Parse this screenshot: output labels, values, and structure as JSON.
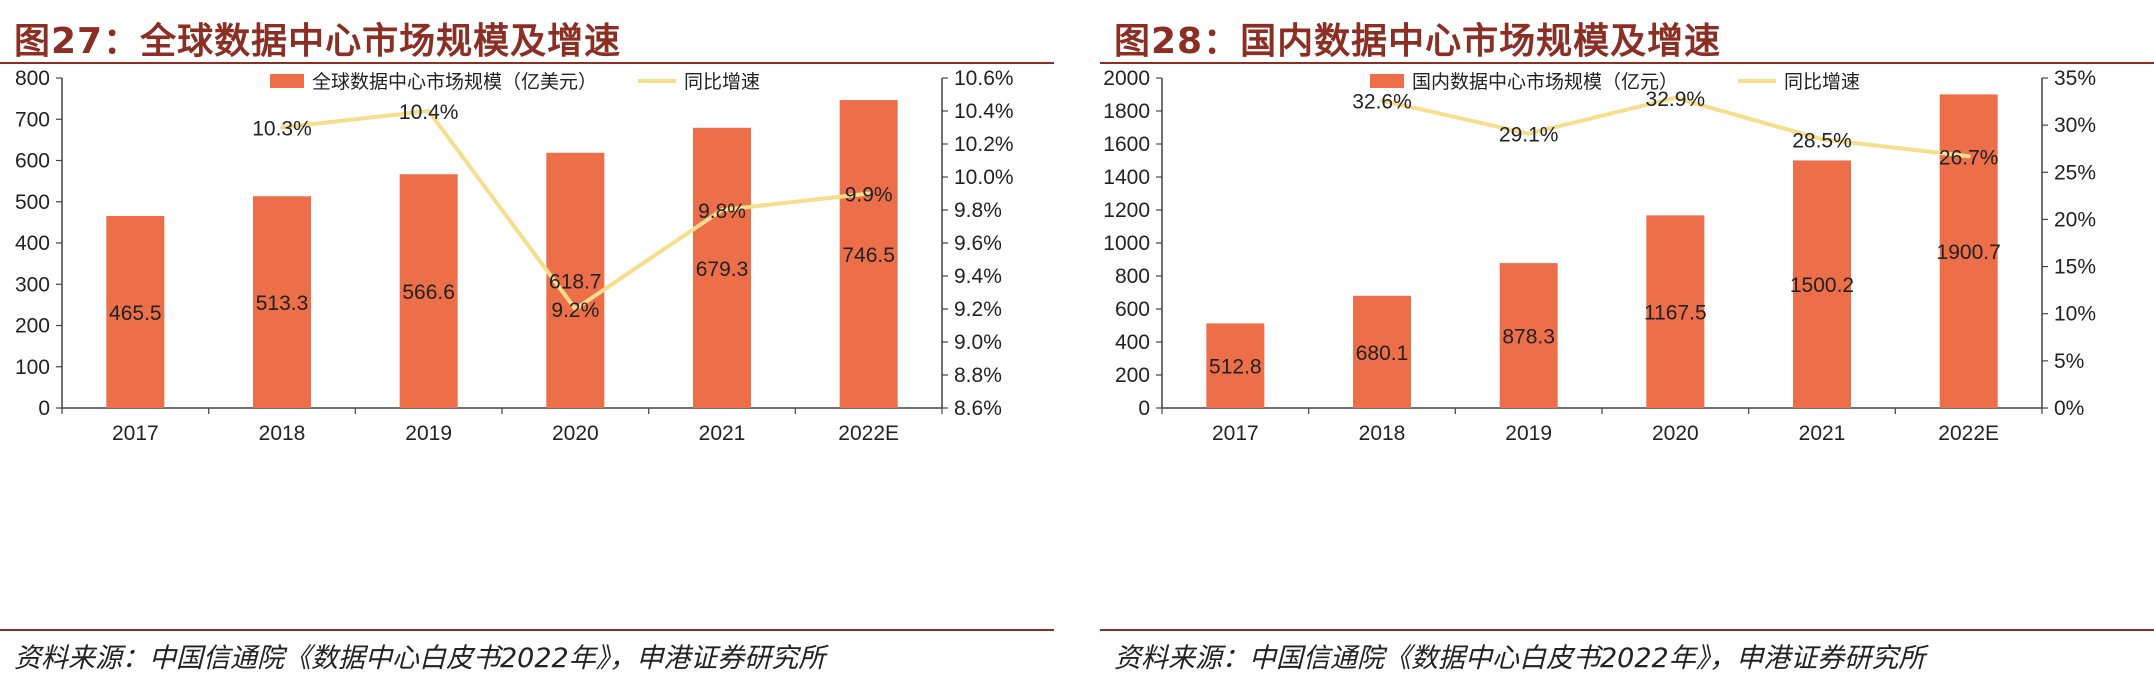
{
  "colors": {
    "bar": "#ec6f49",
    "line": "#f6de8d",
    "accent": "#8b2e23"
  },
  "charts": [
    {
      "title": "图27：全球数据中心市场规模及增速",
      "source": "资料来源：中国信通院《数据中心白皮书2022年》，申港证券研究所",
      "chart_data": {
        "type": "bar",
        "categories": [
          "2017",
          "2018",
          "2019",
          "2020",
          "2021",
          "2022E"
        ],
        "series": [
          {
            "name": "全球数据中心市场规模（亿美元）",
            "type": "bar",
            "axis": "left",
            "values": [
              465.5,
              513.3,
              566.6,
              618.7,
              679.3,
              746.5
            ],
            "labels": [
              "465.5",
              "513.3",
              "566.6",
              "618.7",
              "679.3",
              "746.5"
            ]
          },
          {
            "name": "同比增速",
            "type": "line",
            "axis": "right",
            "values": [
              null,
              10.3,
              10.4,
              9.2,
              9.8,
              9.9
            ],
            "labels": [
              "",
              "10.3%",
              "10.4%",
              "9.2%",
              "9.8%",
              "9.9%"
            ]
          }
        ],
        "y_left": {
          "min": 0,
          "max": 800,
          "ticks": [
            "0",
            "100",
            "200",
            "300",
            "400",
            "500",
            "600",
            "700",
            "800"
          ]
        },
        "y_right": {
          "min": 8.6,
          "max": 10.6,
          "ticks": [
            "8.6%",
            "8.8%",
            "9.0%",
            "9.2%",
            "9.4%",
            "9.6%",
            "9.8%",
            "10.0%",
            "10.2%",
            "10.4%",
            "10.6%"
          ]
        },
        "legend": "top-center",
        "grid": false
      }
    },
    {
      "title": "图28：国内数据中心市场规模及增速",
      "source": "资料来源：中国信通院《数据中心白皮书2022年》，申港证券研究所",
      "chart_data": {
        "type": "bar",
        "categories": [
          "2017",
          "2018",
          "2019",
          "2020",
          "2021",
          "2022E"
        ],
        "series": [
          {
            "name": "国内数据中心市场规模（亿元）",
            "type": "bar",
            "axis": "left",
            "values": [
              512.8,
              680.1,
              878.3,
              1167.5,
              1500.2,
              1900.7
            ],
            "labels": [
              "512.8",
              "680.1",
              "878.3",
              "1167.5",
              "1500.2",
              "1900.7"
            ]
          },
          {
            "name": "同比增速",
            "type": "line",
            "axis": "right",
            "values": [
              null,
              32.6,
              29.1,
              32.9,
              28.5,
              26.7
            ],
            "labels": [
              "",
              "32.6%",
              "29.1%",
              "32.9%",
              "28.5%",
              "26.7%"
            ]
          }
        ],
        "y_left": {
          "min": 0,
          "max": 2000,
          "ticks": [
            "0",
            "200",
            "400",
            "600",
            "800",
            "1000",
            "1200",
            "1400",
            "1600",
            "1800",
            "2000"
          ]
        },
        "y_right": {
          "min": 0,
          "max": 35,
          "ticks": [
            "0%",
            "5%",
            "10%",
            "15%",
            "20%",
            "25%",
            "30%",
            "35%"
          ]
        },
        "legend": "top-center",
        "grid": false
      }
    }
  ]
}
